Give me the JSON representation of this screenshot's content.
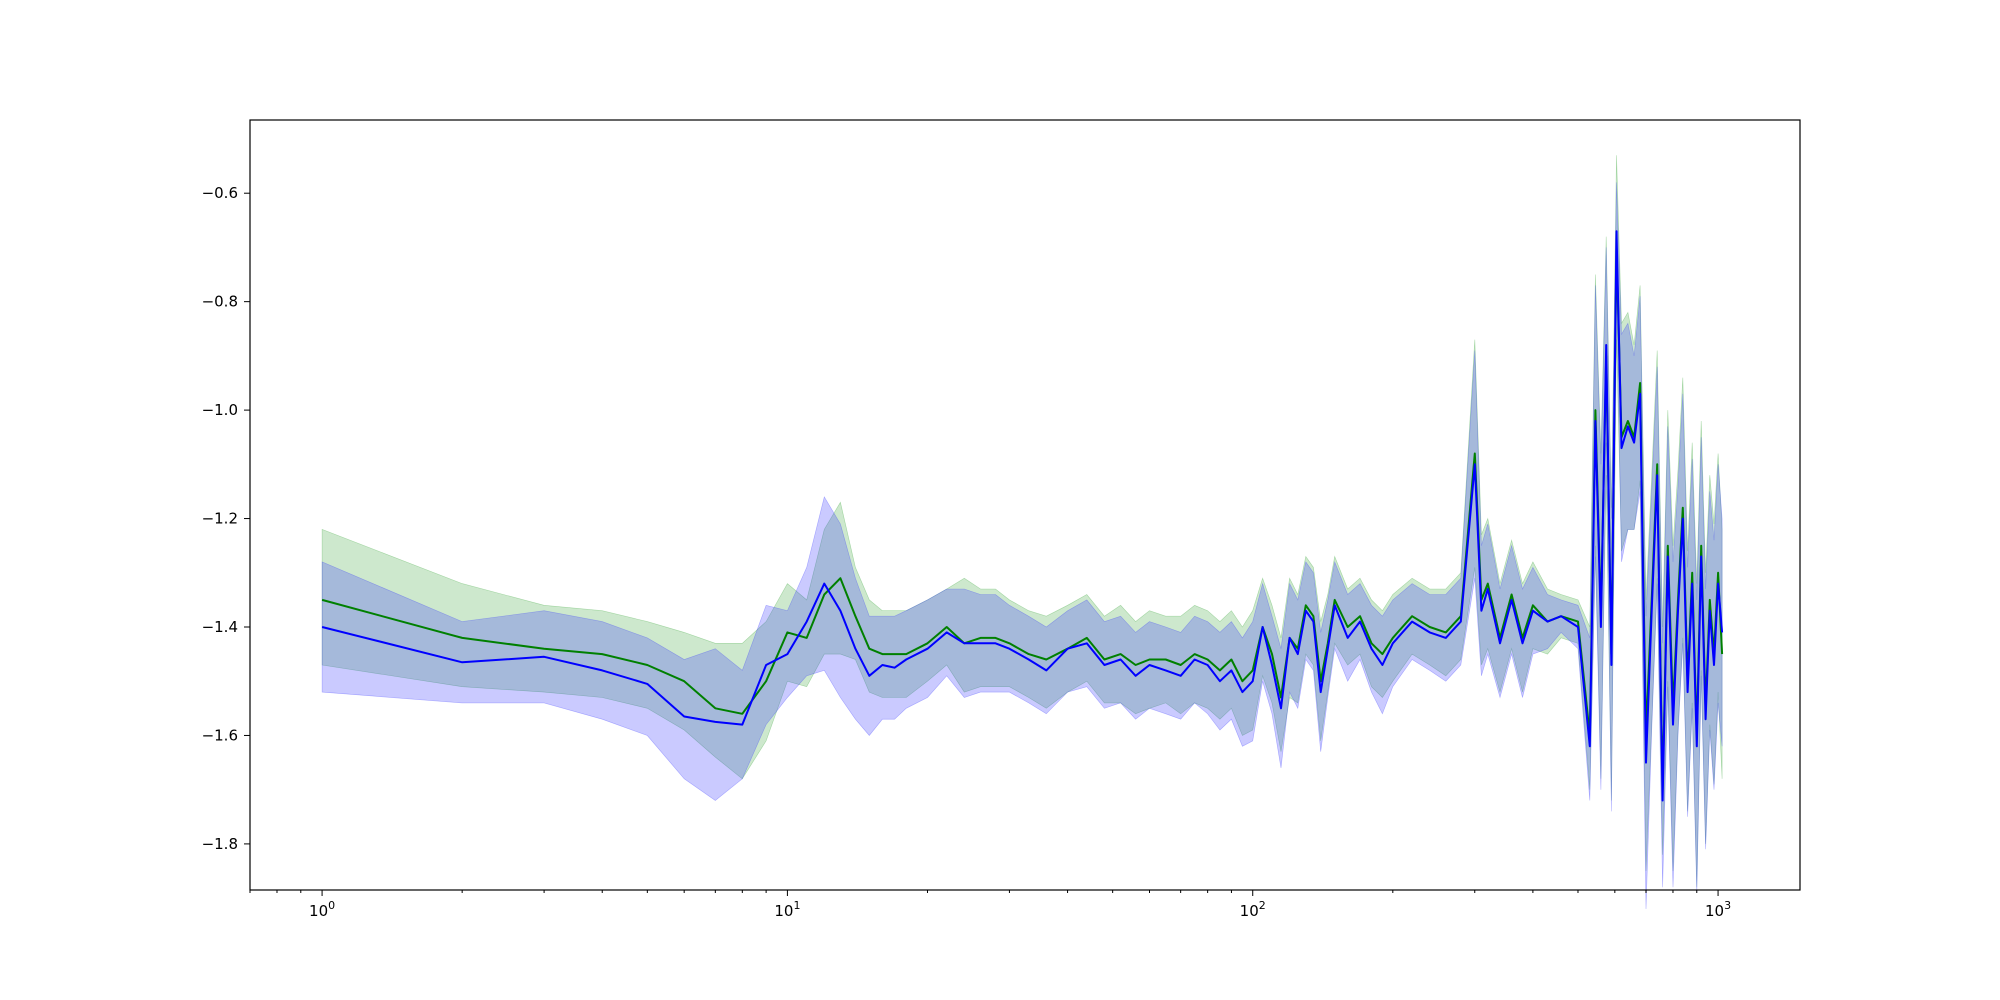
{
  "chart_data": {
    "type": "line",
    "title": "",
    "xlabel": "",
    "ylabel": "",
    "xscale": "log",
    "xlim": [
      0.7,
      1500
    ],
    "ylim": [
      -1.885,
      -0.465
    ],
    "grid": false,
    "legend": "none",
    "x_ticks": [
      {
        "value": 1,
        "base": "10",
        "exp": "0"
      },
      {
        "value": 10,
        "base": "10",
        "exp": "1"
      },
      {
        "value": 100,
        "base": "10",
        "exp": "2"
      },
      {
        "value": 1000,
        "base": "10",
        "exp": "3"
      }
    ],
    "y_ticks": [
      {
        "value": -0.6,
        "label": "−0.6"
      },
      {
        "value": -0.8,
        "label": "−0.8"
      },
      {
        "value": -1.0,
        "label": "−1.0"
      },
      {
        "value": -1.2,
        "label": "−1.2"
      },
      {
        "value": -1.4,
        "label": "−1.4"
      },
      {
        "value": -1.6,
        "label": "−1.6"
      },
      {
        "value": -1.8,
        "label": "−1.8"
      }
    ],
    "colors": {
      "green_line": "#008000",
      "blue_line": "#0000ff",
      "green_band": "#2ca02c",
      "blue_band": "#3333ff"
    },
    "series": [
      {
        "color": "green",
        "x": [
          1,
          2,
          3,
          4,
          5,
          6,
          7,
          8,
          9,
          10,
          11,
          12,
          13,
          14,
          15,
          16,
          17,
          18,
          20,
          22,
          24,
          26,
          28,
          30,
          33,
          36,
          40,
          44,
          48,
          52,
          56,
          60,
          65,
          70,
          75,
          80,
          85,
          90,
          95,
          100,
          105,
          110,
          115,
          120,
          125,
          130,
          135,
          140,
          145,
          150,
          160,
          170,
          180,
          190,
          200,
          220,
          240,
          260,
          280,
          300,
          310,
          320,
          340,
          360,
          380,
          400,
          430,
          460,
          500,
          530,
          545,
          560,
          575,
          590,
          605,
          620,
          640,
          660,
          680,
          700,
          720,
          740,
          760,
          780,
          800,
          820,
          840,
          860,
          880,
          900,
          920,
          940,
          960,
          980,
          1000,
          1020
        ],
        "y": [
          -1.35,
          -1.42,
          -1.44,
          -1.45,
          -1.47,
          -1.5,
          -1.55,
          -1.56,
          -1.5,
          -1.41,
          -1.42,
          -1.34,
          -1.31,
          -1.38,
          -1.44,
          -1.45,
          -1.45,
          -1.45,
          -1.43,
          -1.4,
          -1.43,
          -1.42,
          -1.42,
          -1.43,
          -1.45,
          -1.46,
          -1.44,
          -1.42,
          -1.46,
          -1.45,
          -1.47,
          -1.46,
          -1.46,
          -1.47,
          -1.45,
          -1.46,
          -1.48,
          -1.46,
          -1.5,
          -1.48,
          -1.4,
          -1.45,
          -1.53,
          -1.42,
          -1.44,
          -1.36,
          -1.38,
          -1.5,
          -1.43,
          -1.35,
          -1.4,
          -1.38,
          -1.43,
          -1.45,
          -1.42,
          -1.38,
          -1.4,
          -1.41,
          -1.38,
          -1.08,
          -1.35,
          -1.32,
          -1.42,
          -1.34,
          -1.42,
          -1.36,
          -1.39,
          -1.38,
          -1.39,
          -1.6,
          -1.0,
          -1.38,
          -0.9,
          -1.45,
          -0.7,
          -1.05,
          -1.02,
          -1.05,
          -0.95,
          -1.6,
          -1.35,
          -1.1,
          -1.7,
          -1.25,
          -1.55,
          -1.35,
          -1.18,
          -1.5,
          -1.3,
          -1.6,
          -1.25,
          -1.55,
          -1.35,
          -1.45,
          -1.3,
          -1.45
        ]
      },
      {
        "color": "blue",
        "x": [
          1,
          2,
          3,
          4,
          5,
          6,
          7,
          8,
          9,
          10,
          11,
          12,
          13,
          14,
          15,
          16,
          17,
          18,
          20,
          22,
          24,
          26,
          28,
          30,
          33,
          36,
          40,
          44,
          48,
          52,
          56,
          60,
          65,
          70,
          75,
          80,
          85,
          90,
          95,
          100,
          105,
          110,
          115,
          120,
          125,
          130,
          135,
          140,
          145,
          150,
          160,
          170,
          180,
          190,
          200,
          220,
          240,
          260,
          280,
          300,
          310,
          320,
          340,
          360,
          380,
          400,
          430,
          460,
          500,
          530,
          545,
          560,
          575,
          590,
          605,
          620,
          640,
          660,
          680,
          700,
          720,
          740,
          760,
          780,
          800,
          820,
          840,
          860,
          880,
          900,
          920,
          940,
          960,
          980,
          1000,
          1020
        ],
        "y": [
          -1.4,
          -1.465,
          -1.455,
          -1.48,
          -1.505,
          -1.565,
          -1.575,
          -1.58,
          -1.47,
          -1.45,
          -1.39,
          -1.32,
          -1.37,
          -1.44,
          -1.49,
          -1.47,
          -1.475,
          -1.46,
          -1.44,
          -1.41,
          -1.43,
          -1.43,
          -1.43,
          -1.44,
          -1.46,
          -1.48,
          -1.44,
          -1.43,
          -1.47,
          -1.46,
          -1.49,
          -1.47,
          -1.48,
          -1.49,
          -1.46,
          -1.47,
          -1.5,
          -1.48,
          -1.52,
          -1.5,
          -1.4,
          -1.47,
          -1.55,
          -1.42,
          -1.45,
          -1.37,
          -1.39,
          -1.52,
          -1.44,
          -1.36,
          -1.42,
          -1.39,
          -1.44,
          -1.47,
          -1.43,
          -1.39,
          -1.41,
          -1.42,
          -1.39,
          -1.1,
          -1.37,
          -1.33,
          -1.43,
          -1.35,
          -1.43,
          -1.37,
          -1.39,
          -1.38,
          -1.4,
          -1.62,
          -1.02,
          -1.4,
          -0.88,
          -1.47,
          -0.67,
          -1.07,
          -1.03,
          -1.06,
          -0.97,
          -1.65,
          -1.37,
          -1.12,
          -1.72,
          -1.27,
          -1.58,
          -1.37,
          -1.2,
          -1.52,
          -1.32,
          -1.62,
          -1.27,
          -1.57,
          -1.37,
          -1.47,
          -1.32,
          -1.41
        ]
      }
    ],
    "bands": [
      {
        "color": "green",
        "x": [
          1,
          2,
          3,
          4,
          5,
          6,
          7,
          8,
          9,
          10,
          11,
          12,
          13,
          14,
          15,
          16,
          17,
          18,
          20,
          22,
          24,
          26,
          28,
          30,
          33,
          36,
          40,
          44,
          48,
          52,
          56,
          60,
          65,
          70,
          75,
          80,
          85,
          90,
          95,
          100,
          105,
          110,
          115,
          120,
          125,
          130,
          135,
          140,
          145,
          150,
          160,
          170,
          180,
          190,
          200,
          220,
          240,
          260,
          280,
          300,
          310,
          320,
          340,
          360,
          380,
          400,
          430,
          460,
          500,
          530,
          545,
          560,
          575,
          590,
          605,
          620,
          640,
          660,
          680,
          700,
          720,
          740,
          760,
          780,
          800,
          820,
          840,
          860,
          880,
          900,
          920,
          940,
          960,
          980,
          1000,
          1020
        ],
        "upper": [
          -1.22,
          -1.32,
          -1.36,
          -1.37,
          -1.39,
          -1.41,
          -1.43,
          -1.43,
          -1.39,
          -1.32,
          -1.35,
          -1.22,
          -1.17,
          -1.29,
          -1.35,
          -1.37,
          -1.37,
          -1.37,
          -1.35,
          -1.33,
          -1.31,
          -1.33,
          -1.33,
          -1.35,
          -1.37,
          -1.38,
          -1.36,
          -1.34,
          -1.38,
          -1.36,
          -1.39,
          -1.37,
          -1.38,
          -1.38,
          -1.36,
          -1.37,
          -1.39,
          -1.37,
          -1.4,
          -1.37,
          -1.31,
          -1.36,
          -1.42,
          -1.31,
          -1.34,
          -1.27,
          -1.29,
          -1.39,
          -1.34,
          -1.27,
          -1.33,
          -1.31,
          -1.35,
          -1.37,
          -1.34,
          -1.31,
          -1.33,
          -1.33,
          -1.3,
          -0.87,
          -1.23,
          -1.2,
          -1.32,
          -1.24,
          -1.32,
          -1.28,
          -1.33,
          -1.34,
          -1.35,
          -1.4,
          -0.75,
          -1.08,
          -0.68,
          -1.18,
          -0.53,
          -0.84,
          -0.82,
          -0.88,
          -0.77,
          -1.35,
          -1.12,
          -0.89,
          -1.4,
          -1.0,
          -1.25,
          -1.11,
          -0.94,
          -1.26,
          -1.06,
          -1.32,
          -1.02,
          -1.3,
          -1.12,
          -1.21,
          -1.08,
          -1.22
        ],
        "lower": [
          -1.47,
          -1.51,
          -1.52,
          -1.53,
          -1.55,
          -1.59,
          -1.64,
          -1.68,
          -1.61,
          -1.5,
          -1.51,
          -1.45,
          -1.45,
          -1.46,
          -1.52,
          -1.53,
          -1.53,
          -1.53,
          -1.5,
          -1.47,
          -1.52,
          -1.51,
          -1.51,
          -1.51,
          -1.53,
          -1.55,
          -1.52,
          -1.5,
          -1.54,
          -1.54,
          -1.56,
          -1.55,
          -1.54,
          -1.56,
          -1.54,
          -1.55,
          -1.57,
          -1.55,
          -1.6,
          -1.59,
          -1.49,
          -1.54,
          -1.63,
          -1.53,
          -1.54,
          -1.45,
          -1.47,
          -1.61,
          -1.52,
          -1.43,
          -1.47,
          -1.45,
          -1.51,
          -1.53,
          -1.5,
          -1.45,
          -1.47,
          -1.49,
          -1.46,
          -1.29,
          -1.47,
          -1.44,
          -1.52,
          -1.44,
          -1.52,
          -1.44,
          -1.45,
          -1.42,
          -1.43,
          -1.7,
          -1.25,
          -1.68,
          -1.12,
          -1.72,
          -0.87,
          -1.26,
          -1.22,
          -1.22,
          -1.13,
          -1.85,
          -1.58,
          -1.31,
          -1.82,
          -1.5,
          -1.85,
          -1.59,
          -1.42,
          -1.74,
          -1.54,
          -1.88,
          -1.48,
          -1.8,
          -1.58,
          -1.69,
          -1.52,
          -1.68
        ]
      },
      {
        "color": "blue",
        "x": [
          1,
          2,
          3,
          4,
          5,
          6,
          7,
          8,
          9,
          10,
          11,
          12,
          13,
          14,
          15,
          16,
          17,
          18,
          20,
          22,
          24,
          26,
          28,
          30,
          33,
          36,
          40,
          44,
          48,
          52,
          56,
          60,
          65,
          70,
          75,
          80,
          85,
          90,
          95,
          100,
          105,
          110,
          115,
          120,
          125,
          130,
          135,
          140,
          145,
          150,
          160,
          170,
          180,
          190,
          200,
          220,
          240,
          260,
          280,
          300,
          310,
          320,
          340,
          360,
          380,
          400,
          430,
          460,
          500,
          530,
          545,
          560,
          575,
          590,
          605,
          620,
          640,
          660,
          680,
          700,
          720,
          740,
          760,
          780,
          800,
          820,
          840,
          860,
          880,
          900,
          920,
          940,
          960,
          980,
          1000,
          1020
        ],
        "upper": [
          -1.28,
          -1.39,
          -1.37,
          -1.39,
          -1.42,
          -1.46,
          -1.44,
          -1.48,
          -1.36,
          -1.37,
          -1.29,
          -1.16,
          -1.21,
          -1.31,
          -1.38,
          -1.38,
          -1.38,
          -1.37,
          -1.35,
          -1.33,
          -1.33,
          -1.34,
          -1.34,
          -1.36,
          -1.38,
          -1.4,
          -1.37,
          -1.35,
          -1.39,
          -1.38,
          -1.41,
          -1.39,
          -1.4,
          -1.41,
          -1.38,
          -1.39,
          -1.41,
          -1.39,
          -1.42,
          -1.39,
          -1.32,
          -1.38,
          -1.44,
          -1.32,
          -1.35,
          -1.28,
          -1.3,
          -1.41,
          -1.35,
          -1.28,
          -1.34,
          -1.32,
          -1.36,
          -1.38,
          -1.35,
          -1.32,
          -1.34,
          -1.34,
          -1.31,
          -0.89,
          -1.25,
          -1.21,
          -1.33,
          -1.25,
          -1.33,
          -1.29,
          -1.34,
          -1.35,
          -1.36,
          -1.42,
          -0.77,
          -1.1,
          -0.7,
          -1.2,
          -0.58,
          -0.86,
          -0.84,
          -0.9,
          -0.79,
          -1.38,
          -1.15,
          -0.92,
          -1.43,
          -1.03,
          -1.28,
          -1.14,
          -0.97,
          -1.29,
          -1.09,
          -1.35,
          -1.05,
          -1.33,
          -1.15,
          -1.24,
          -1.1,
          -1.2
        ],
        "lower": [
          -1.52,
          -1.54,
          -1.54,
          -1.57,
          -1.6,
          -1.68,
          -1.72,
          -1.68,
          -1.58,
          -1.53,
          -1.49,
          -1.48,
          -1.53,
          -1.57,
          -1.6,
          -1.57,
          -1.57,
          -1.55,
          -1.53,
          -1.49,
          -1.53,
          -1.52,
          -1.52,
          -1.52,
          -1.54,
          -1.56,
          -1.52,
          -1.51,
          -1.55,
          -1.54,
          -1.57,
          -1.55,
          -1.56,
          -1.57,
          -1.54,
          -1.56,
          -1.59,
          -1.57,
          -1.62,
          -1.61,
          -1.5,
          -1.56,
          -1.66,
          -1.52,
          -1.55,
          -1.46,
          -1.48,
          -1.63,
          -1.53,
          -1.44,
          -1.5,
          -1.46,
          -1.52,
          -1.56,
          -1.51,
          -1.46,
          -1.48,
          -1.5,
          -1.47,
          -1.31,
          -1.49,
          -1.45,
          -1.53,
          -1.45,
          -1.53,
          -1.45,
          -1.44,
          -1.41,
          -1.44,
          -1.72,
          -1.27,
          -1.7,
          -1.06,
          -1.74,
          -0.76,
          -1.28,
          -1.22,
          -1.22,
          -1.15,
          -1.92,
          -1.59,
          -1.32,
          -1.88,
          -1.51,
          -1.88,
          -1.6,
          -1.43,
          -1.75,
          -1.55,
          -1.89,
          -1.49,
          -1.81,
          -1.59,
          -1.7,
          -1.54,
          -1.62
        ]
      }
    ]
  }
}
